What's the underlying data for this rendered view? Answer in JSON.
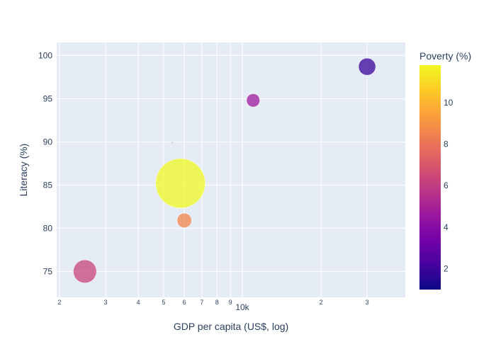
{
  "chart_data": {
    "type": "scatter",
    "xlabel": "GDP per capita (US$, log)",
    "ylabel": "Literacy (%)",
    "x_scale": "log",
    "xlim": [
      1950,
      42000
    ],
    "ylim": [
      72,
      101.5
    ],
    "grid": true,
    "x_ticks": [
      {
        "value": 2000,
        "label": "2"
      },
      {
        "value": 3000,
        "label": "3"
      },
      {
        "value": 4000,
        "label": "4"
      },
      {
        "value": 5000,
        "label": "5"
      },
      {
        "value": 6000,
        "label": "6"
      },
      {
        "value": 7000,
        "label": "7"
      },
      {
        "value": 8000,
        "label": "8"
      },
      {
        "value": 9000,
        "label": "9"
      },
      {
        "value": 10000,
        "label": "10k"
      },
      {
        "value": 20000,
        "label": "2"
      },
      {
        "value": 30000,
        "label": "3"
      }
    ],
    "y_ticks": [
      75,
      80,
      85,
      90,
      95,
      100
    ],
    "colorbar": {
      "title": "Poverty (%)",
      "min": 1,
      "max": 11.8,
      "ticks": [
        2,
        4,
        6,
        8,
        10
      ],
      "colors": [
        "#0d0887",
        "#46039f",
        "#7201a8",
        "#9c179e",
        "#bd3786",
        "#d8576b",
        "#ed7953",
        "#fb9f3a",
        "#fdca26",
        "#f0f921"
      ]
    },
    "points": [
      {
        "x": 2500,
        "y": 75.0,
        "poverty": 6.3,
        "size": 4.6
      },
      {
        "x": 5400,
        "y": 89.9,
        "poverty": 1.0,
        "size": 0.0
      },
      {
        "x": 5800,
        "y": 85.2,
        "poverty": 11.8,
        "size": 21.0
      },
      {
        "x": 6000,
        "y": 80.9,
        "poverty": 8.6,
        "size": 1.8
      },
      {
        "x": 11000,
        "y": 94.8,
        "poverty": 4.7,
        "size": 1.5
      },
      {
        "x": 30000,
        "y": 98.7,
        "poverty": 1.9,
        "size": 2.5
      }
    ]
  }
}
